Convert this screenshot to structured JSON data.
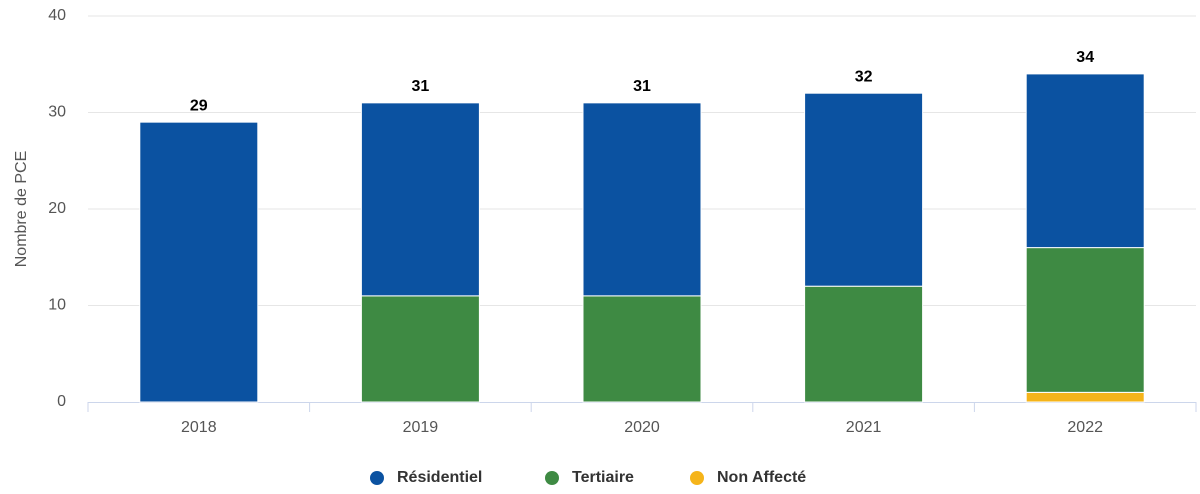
{
  "chart_data": {
    "type": "stacked_bar",
    "y_label": "Nombre de PCE",
    "categories": [
      "2018",
      "2019",
      "2020",
      "2021",
      "2022"
    ],
    "series": [
      {
        "name": "Résidentiel",
        "color": "#0b52a1",
        "values": [
          29,
          20,
          20,
          20,
          18
        ]
      },
      {
        "name": "Tertiaire",
        "color": "#3e8a43",
        "values": [
          0,
          11,
          11,
          12,
          15
        ]
      },
      {
        "name": "Non Affecté",
        "color": "#f5b41a",
        "values": [
          0,
          0,
          0,
          0,
          1
        ]
      }
    ],
    "totals": [
      29,
      31,
      31,
      32,
      34
    ],
    "ylim": [
      0,
      40
    ],
    "yticks": [
      0,
      10,
      20,
      30,
      40
    ],
    "grid": true,
    "legend": "bottom"
  }
}
